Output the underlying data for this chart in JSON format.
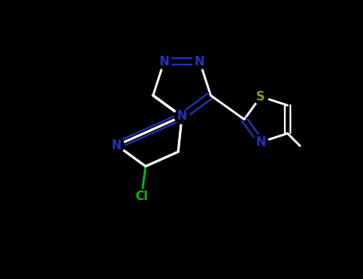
{
  "background_color": "#000000",
  "atom_colors": {
    "N": "#2233bb",
    "S": "#999900",
    "Cl": "#00bb00"
  },
  "bond_color": "#ffffff",
  "figsize": [
    4.55,
    3.5
  ],
  "dpi": 100,
  "scale": 1.0
}
